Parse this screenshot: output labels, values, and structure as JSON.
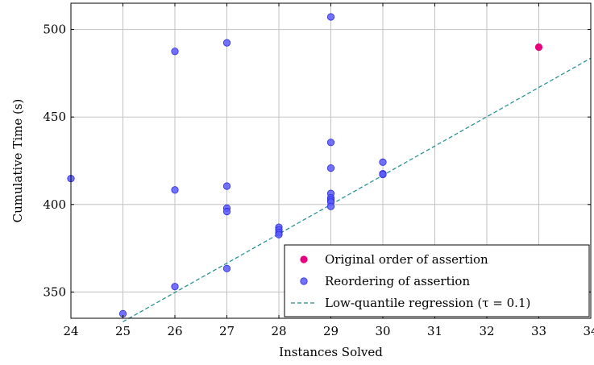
{
  "chart_data": {
    "type": "scatter",
    "xlabel": "Instances Solved",
    "ylabel": "Cumulative Time (s)",
    "xlim": [
      24,
      34
    ],
    "ylim": [
      335,
      515
    ],
    "xticks": [
      24,
      25,
      26,
      27,
      28,
      29,
      30,
      31,
      32,
      33,
      34
    ],
    "yticks": [
      350,
      400,
      450,
      500
    ],
    "grid": true,
    "legend_position": "bottom-right",
    "series": [
      {
        "name": "Original order of assertion",
        "kind": "points",
        "color": "#e6007e",
        "points": [
          [
            33,
            489.9
          ]
        ]
      },
      {
        "name": "Reordering of assertion",
        "kind": "points",
        "color": "#5a5aff",
        "points": [
          [
            24,
            414.8
          ],
          [
            25,
            337.6
          ],
          [
            26,
            487.5
          ],
          [
            26,
            408.3
          ],
          [
            26,
            353.1
          ],
          [
            27,
            492.4
          ],
          [
            27,
            410.5
          ],
          [
            27,
            397.9
          ],
          [
            27,
            396.0
          ],
          [
            27,
            363.4
          ],
          [
            28,
            387.0
          ],
          [
            28,
            385.5
          ],
          [
            28,
            384.0
          ],
          [
            28,
            382.8
          ],
          [
            29,
            507.2
          ],
          [
            29,
            435.5
          ],
          [
            29,
            420.8
          ],
          [
            29,
            406.3
          ],
          [
            29,
            403.8
          ],
          [
            29,
            402.6
          ],
          [
            29,
            401.4
          ],
          [
            29,
            398.9
          ],
          [
            30,
            424.2
          ],
          [
            30,
            417.6
          ],
          [
            30,
            417.2
          ]
        ]
      },
      {
        "name": "Low-quantile regression (τ = 0.1)",
        "kind": "line",
        "color": "#1a8c8c",
        "dash": "dashed",
        "points": [
          [
            25,
            333
          ],
          [
            34,
            483.6
          ]
        ]
      }
    ]
  }
}
